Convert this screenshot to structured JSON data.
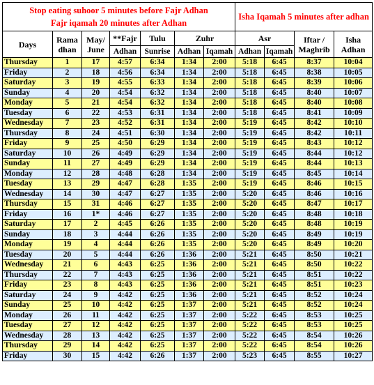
{
  "notice": {
    "left_line1": "Stop eating suhoor 5 minutes before Fajr Adhan",
    "left_line2": "Fajr iqamah 20 minutes after Adhan",
    "right": "Isha Iqamah 5 minutes after adhan"
  },
  "header": {
    "days": "Days",
    "ramadhan_1": "Rama",
    "ramadhan_2": "dhan",
    "may_june_1": "May/",
    "may_june_2": "June",
    "fajr": "**Fajr",
    "fajr_sub": "Adhan",
    "tulu": "Tulu",
    "tulu_sub": "Sunrise",
    "zuhr": "Zuhr",
    "zuhr_adhan": "Adhan",
    "zuhr_iqamah": "Iqamah",
    "asr": "Asr",
    "asr_adhan": "Adhan",
    "asr_iqamah": "Iqamah",
    "iftar_1": "Iftar /",
    "iftar_2": "Maghrib",
    "isha_1": "Isha",
    "isha_2": "Adhan"
  },
  "rows": [
    {
      "day": "Thursday",
      "ram": "1",
      "date": "17",
      "fajr": "4:57",
      "sunrise": "6:34",
      "zuhr": "1:34",
      "zuhr_iq": "2:00",
      "asr": "5:18",
      "asr_iq": "6:45",
      "iftar": "8:37",
      "isha": "10:04"
    },
    {
      "day": "Friday",
      "ram": "2",
      "date": "18",
      "fajr": "4:56",
      "sunrise": "6:34",
      "zuhr": "1:34",
      "zuhr_iq": "2:00",
      "asr": "5:18",
      "asr_iq": "6:45",
      "iftar": "8:38",
      "isha": "10:05"
    },
    {
      "day": "Saturday",
      "ram": "3",
      "date": "19",
      "fajr": "4:55",
      "sunrise": "6:33",
      "zuhr": "1:34",
      "zuhr_iq": "2:00",
      "asr": "5:18",
      "asr_iq": "6:45",
      "iftar": "8:39",
      "isha": "10:06"
    },
    {
      "day": "Sunday",
      "ram": "4",
      "date": "20",
      "fajr": "4:54",
      "sunrise": "6:32",
      "zuhr": "1:34",
      "zuhr_iq": "2:00",
      "asr": "5:18",
      "asr_iq": "6:45",
      "iftar": "8:40",
      "isha": "10:07"
    },
    {
      "day": "Monday",
      "ram": "5",
      "date": "21",
      "fajr": "4:54",
      "sunrise": "6:32",
      "zuhr": "1:34",
      "zuhr_iq": "2:00",
      "asr": "5:18",
      "asr_iq": "6:45",
      "iftar": "8:40",
      "isha": "10:08"
    },
    {
      "day": "Tuesday",
      "ram": "6",
      "date": "22",
      "fajr": "4:53",
      "sunrise": "6:31",
      "zuhr": "1:34",
      "zuhr_iq": "2:00",
      "asr": "5:18",
      "asr_iq": "6:45",
      "iftar": "8:41",
      "isha": "10:09"
    },
    {
      "day": "Wednesday",
      "ram": "7",
      "date": "23",
      "fajr": "4:52",
      "sunrise": "6:31",
      "zuhr": "1:34",
      "zuhr_iq": "2:00",
      "asr": "5:19",
      "asr_iq": "6:45",
      "iftar": "8:42",
      "isha": "10:10"
    },
    {
      "day": "Thursday",
      "ram": "8",
      "date": "24",
      "fajr": "4:51",
      "sunrise": "6:30",
      "zuhr": "1:34",
      "zuhr_iq": "2:00",
      "asr": "5:19",
      "asr_iq": "6:45",
      "iftar": "8:42",
      "isha": "10:11"
    },
    {
      "day": "Friday",
      "ram": "9",
      "date": "25",
      "fajr": "4:50",
      "sunrise": "6:29",
      "zuhr": "1:34",
      "zuhr_iq": "2:00",
      "asr": "5:19",
      "asr_iq": "6:45",
      "iftar": "8:43",
      "isha": "10:12"
    },
    {
      "day": "Saturday",
      "ram": "10",
      "date": "26",
      "fajr": "4:49",
      "sunrise": "6:29",
      "zuhr": "1:34",
      "zuhr_iq": "2:00",
      "asr": "5:19",
      "asr_iq": "6:45",
      "iftar": "8:44",
      "isha": "10:12"
    },
    {
      "day": "Sunday",
      "ram": "11",
      "date": "27",
      "fajr": "4:49",
      "sunrise": "6:29",
      "zuhr": "1:34",
      "zuhr_iq": "2:00",
      "asr": "5:19",
      "asr_iq": "6:45",
      "iftar": "8:44",
      "isha": "10:13"
    },
    {
      "day": "Monday",
      "ram": "12",
      "date": "28",
      "fajr": "4:48",
      "sunrise": "6:28",
      "zuhr": "1:34",
      "zuhr_iq": "2:00",
      "asr": "5:19",
      "asr_iq": "6:45",
      "iftar": "8:45",
      "isha": "10:14"
    },
    {
      "day": "Tuesday",
      "ram": "13",
      "date": "29",
      "fajr": "4:47",
      "sunrise": "6:28",
      "zuhr": "1:35",
      "zuhr_iq": "2:00",
      "asr": "5:19",
      "asr_iq": "6:45",
      "iftar": "8:46",
      "isha": "10:15"
    },
    {
      "day": "Wednesday",
      "ram": "14",
      "date": "30",
      "fajr": "4:47",
      "sunrise": "6:27",
      "zuhr": "1:35",
      "zuhr_iq": "2:00",
      "asr": "5:20",
      "asr_iq": "6:45",
      "iftar": "8:46",
      "isha": "10:16"
    },
    {
      "day": "Thursday",
      "ram": "15",
      "date": "31",
      "fajr": "4:46",
      "sunrise": "6:27",
      "zuhr": "1:35",
      "zuhr_iq": "2:00",
      "asr": "5:20",
      "asr_iq": "6:45",
      "iftar": "8:47",
      "isha": "10:17"
    },
    {
      "day": "Friday",
      "ram": "16",
      "date": "1*",
      "fajr": "4:46",
      "sunrise": "6:27",
      "zuhr": "1:35",
      "zuhr_iq": "2:00",
      "asr": "5:20",
      "asr_iq": "6:45",
      "iftar": "8:48",
      "isha": "10:18"
    },
    {
      "day": "Saturday",
      "ram": "17",
      "date": "2",
      "fajr": "4:45",
      "sunrise": "6:26",
      "zuhr": "1:35",
      "zuhr_iq": "2:00",
      "asr": "5:20",
      "asr_iq": "6:45",
      "iftar": "8:48",
      "isha": "10:19"
    },
    {
      "day": "Sunday",
      "ram": "18",
      "date": "3",
      "fajr": "4:44",
      "sunrise": "6:26",
      "zuhr": "1:35",
      "zuhr_iq": "2:00",
      "asr": "5:20",
      "asr_iq": "6:45",
      "iftar": "8:49",
      "isha": "10:19"
    },
    {
      "day": "Monday",
      "ram": "19",
      "date": "4",
      "fajr": "4:44",
      "sunrise": "6:26",
      "zuhr": "1:35",
      "zuhr_iq": "2:00",
      "asr": "5:20",
      "asr_iq": "6:45",
      "iftar": "8:49",
      "isha": "10:20"
    },
    {
      "day": "Tuesday",
      "ram": "20",
      "date": "5",
      "fajr": "4:44",
      "sunrise": "6:26",
      "zuhr": "1:36",
      "zuhr_iq": "2:00",
      "asr": "5:21",
      "asr_iq": "6:45",
      "iftar": "8:50",
      "isha": "10:21"
    },
    {
      "day": "Wednesday",
      "ram": "21",
      "date": "6",
      "fajr": "4:43",
      "sunrise": "6:25",
      "zuhr": "1:36",
      "zuhr_iq": "2:00",
      "asr": "5:21",
      "asr_iq": "6:45",
      "iftar": "8:50",
      "isha": "10:22"
    },
    {
      "day": "Thursday",
      "ram": "22",
      "date": "7",
      "fajr": "4:43",
      "sunrise": "6:25",
      "zuhr": "1:36",
      "zuhr_iq": "2:00",
      "asr": "5:21",
      "asr_iq": "6:45",
      "iftar": "8:51",
      "isha": "10:22"
    },
    {
      "day": "Friday",
      "ram": "23",
      "date": "8",
      "fajr": "4:43",
      "sunrise": "6:25",
      "zuhr": "1:36",
      "zuhr_iq": "2:00",
      "asr": "5:21",
      "asr_iq": "6:45",
      "iftar": "8:51",
      "isha": "10:23"
    },
    {
      "day": "Saturday",
      "ram": "24",
      "date": "9",
      "fajr": "4:42",
      "sunrise": "6:25",
      "zuhr": "1:36",
      "zuhr_iq": "2:00",
      "asr": "5:21",
      "asr_iq": "6:45",
      "iftar": "8:52",
      "isha": "10:24"
    },
    {
      "day": "Sunday",
      "ram": "25",
      "date": "10",
      "fajr": "4:42",
      "sunrise": "6:25",
      "zuhr": "1:37",
      "zuhr_iq": "2:00",
      "asr": "5:21",
      "asr_iq": "6:45",
      "iftar": "8:52",
      "isha": "10:24"
    },
    {
      "day": "Monday",
      "ram": "26",
      "date": "11",
      "fajr": "4:42",
      "sunrise": "6:25",
      "zuhr": "1:37",
      "zuhr_iq": "2:00",
      "asr": "5:22",
      "asr_iq": "6:45",
      "iftar": "8:53",
      "isha": "10:25"
    },
    {
      "day": "Tuesday",
      "ram": "27",
      "date": "12",
      "fajr": "4:42",
      "sunrise": "6:25",
      "zuhr": "1:37",
      "zuhr_iq": "2:00",
      "asr": "5:22",
      "asr_iq": "6:45",
      "iftar": "8:53",
      "isha": "10:25"
    },
    {
      "day": "Wednesday",
      "ram": "28",
      "date": "13",
      "fajr": "4:42",
      "sunrise": "6:25",
      "zuhr": "1:37",
      "zuhr_iq": "2:00",
      "asr": "5:22",
      "asr_iq": "6:45",
      "iftar": "8:54",
      "isha": "10:26"
    },
    {
      "day": "Thursday",
      "ram": "29",
      "date": "14",
      "fajr": "4:42",
      "sunrise": "6:25",
      "zuhr": "1:37",
      "zuhr_iq": "2:00",
      "asr": "5:22",
      "asr_iq": "6:45",
      "iftar": "8:54",
      "isha": "10:26"
    },
    {
      "day": "Friday",
      "ram": "30",
      "date": "15",
      "fajr": "4:42",
      "sunrise": "6:26",
      "zuhr": "1:37",
      "zuhr_iq": "2:00",
      "asr": "5:23",
      "asr_iq": "6:45",
      "iftar": "8:55",
      "isha": "10:27"
    }
  ],
  "colors": {
    "notice_text": "#ff0000",
    "row_yellow": "#ffff99",
    "row_blue": "#ddeeff",
    "border": "#000000"
  }
}
